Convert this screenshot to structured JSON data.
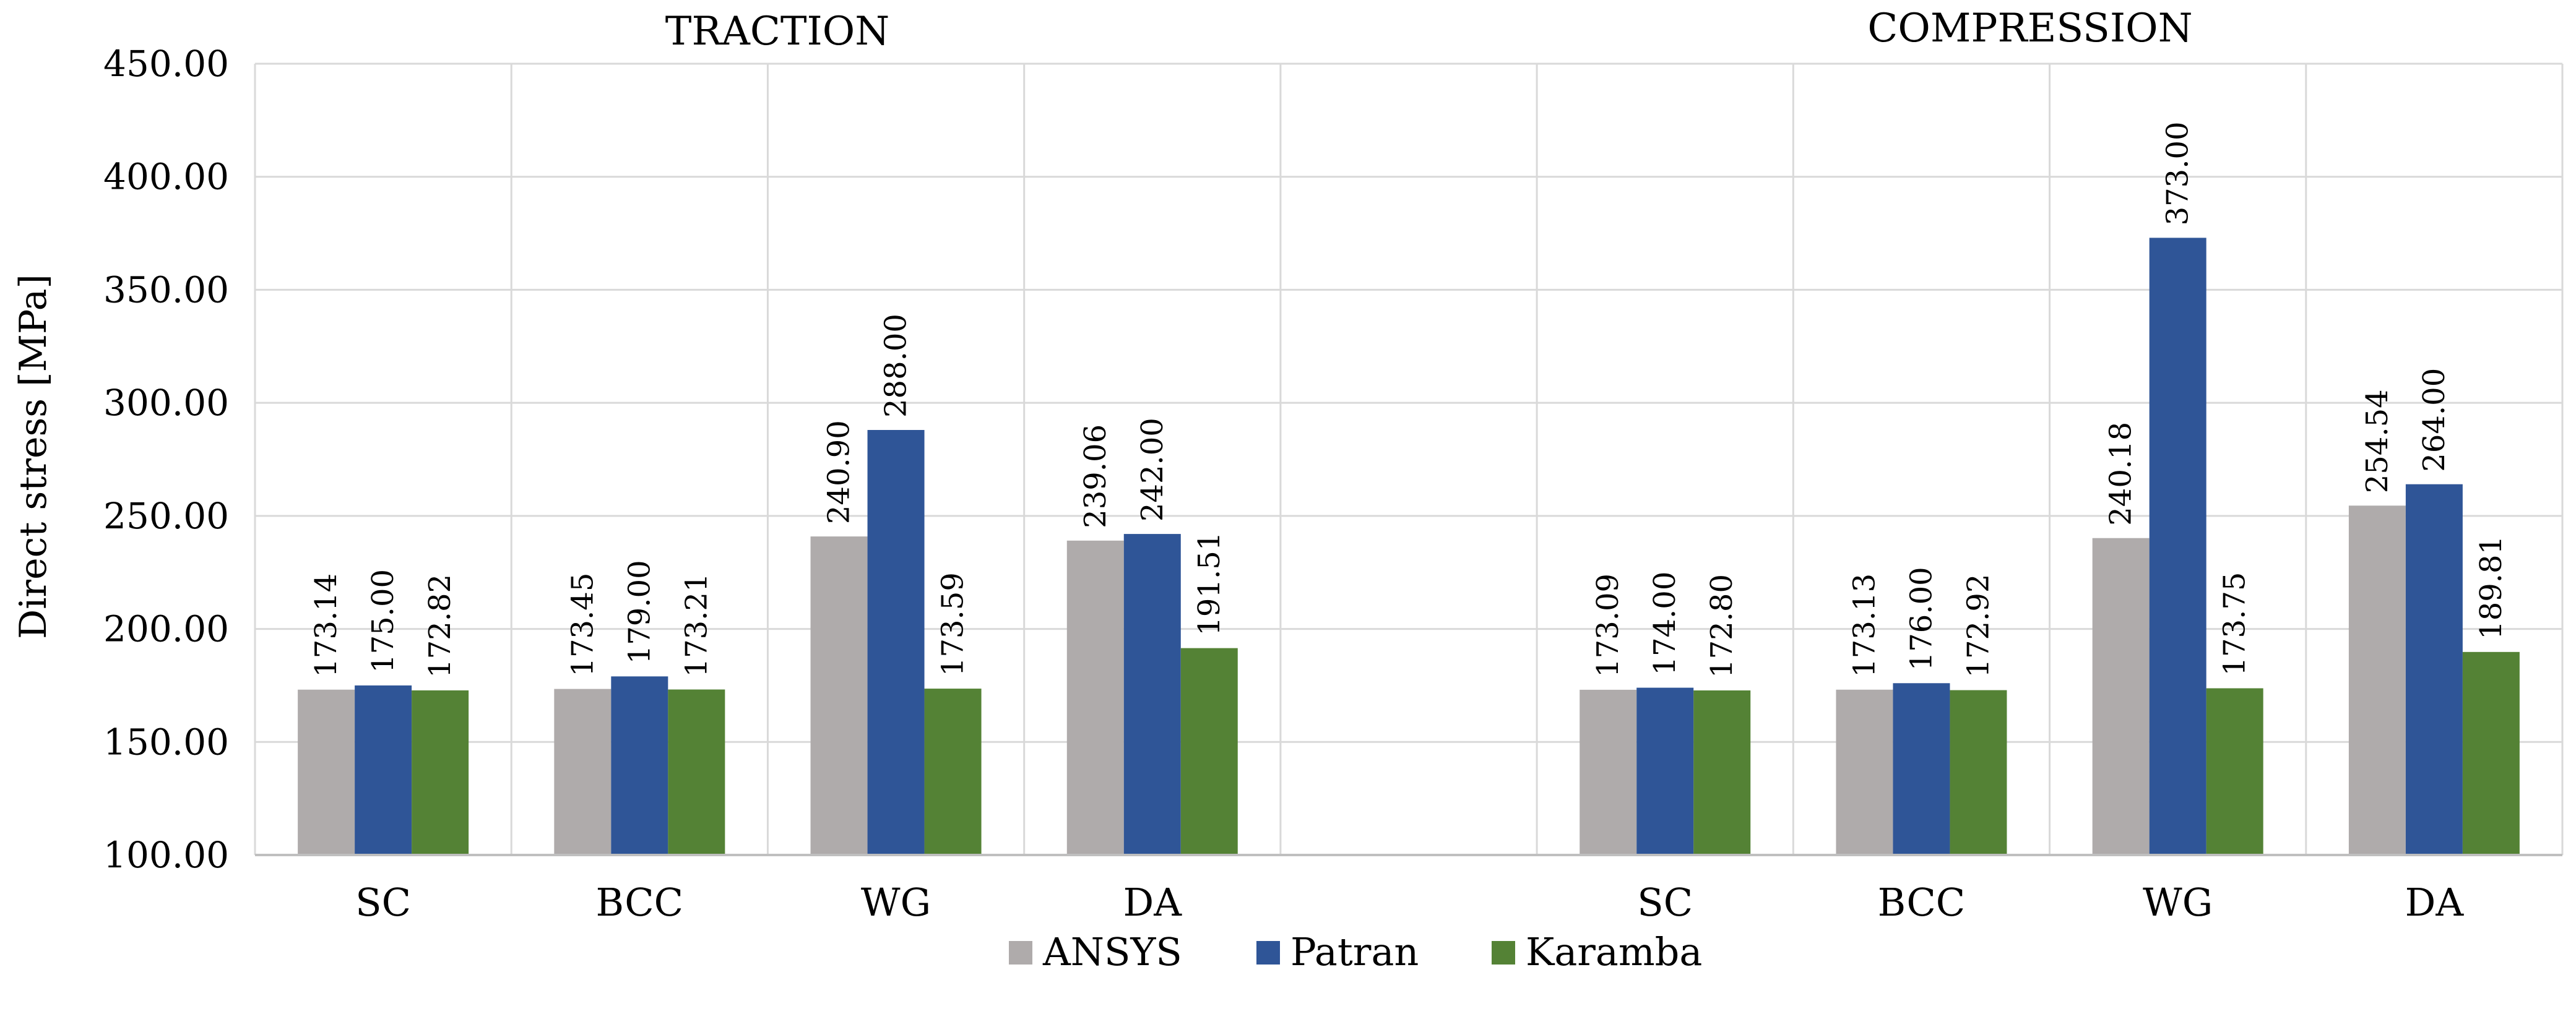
{
  "chart_data": {
    "type": "bar",
    "ylabel": "Direct stress [MPa]",
    "xlabel": "",
    "ylim": [
      100,
      450
    ],
    "y_ticks": [
      "100.00",
      "150.00",
      "200.00",
      "250.00",
      "300.00",
      "350.00",
      "400.00",
      "450.00"
    ],
    "grid": true,
    "legend_position": "bottom-center",
    "groups": [
      {
        "title": "TRACTION",
        "categories": [
          "SC",
          "BCC",
          "WG",
          "DA"
        ],
        "series": [
          {
            "name": "ANSYS",
            "values": [
              173.14,
              173.45,
              240.9,
              239.06
            ],
            "labels": [
              "173.14",
              "173.45",
              "240.90",
              "239.06"
            ]
          },
          {
            "name": "Patran",
            "values": [
              175.0,
              179.0,
              288.0,
              242.0
            ],
            "labels": [
              "175.00",
              "179.00",
              "288.00",
              "242.00"
            ]
          },
          {
            "name": "Karamba",
            "values": [
              172.82,
              173.21,
              173.59,
              191.51
            ],
            "labels": [
              "172.82",
              "173.21",
              "173.59",
              "191.51"
            ]
          }
        ]
      },
      {
        "title": "COMPRESSION",
        "categories": [
          "SC",
          "BCC",
          "WG",
          "DA"
        ],
        "series": [
          {
            "name": "ANSYS",
            "values": [
              173.09,
              173.13,
              240.18,
              254.54
            ],
            "labels": [
              "173.09",
              "173.13",
              "240.18",
              "254.54"
            ]
          },
          {
            "name": "Patran",
            "values": [
              174.0,
              176.0,
              373.0,
              264.0
            ],
            "labels": [
              "174.00",
              "176.00",
              "373.00",
              "264.00"
            ]
          },
          {
            "name": "Karamba",
            "values": [
              172.8,
              172.92,
              173.75,
              189.81
            ],
            "labels": [
              "172.80",
              "172.92",
              "173.75",
              "189.81"
            ]
          }
        ]
      }
    ],
    "legend": [
      {
        "name": "ANSYS",
        "color": "#afabab"
      },
      {
        "name": "Patran",
        "color": "#2f5597"
      },
      {
        "name": "Karamba",
        "color": "#548235"
      }
    ]
  }
}
